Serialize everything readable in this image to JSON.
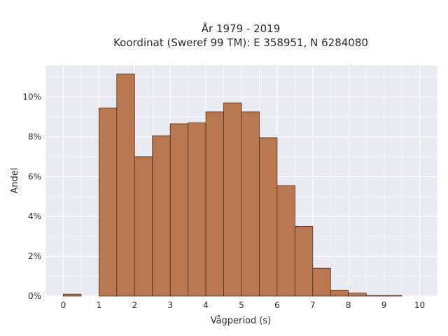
{
  "chart_data": {
    "type": "bar",
    "title_line1": "År 1979 - 2019",
    "title_line2": "Koordinat (Sweref 99 TM): E 358951, N 6284080",
    "xlabel": "Vågperiod (s)",
    "ylabel": "Andel",
    "bin_width": 0.5,
    "bins_start": [
      0,
      0.5,
      1,
      1.5,
      2,
      2.5,
      3,
      3.5,
      4,
      4.5,
      5,
      5.5,
      6,
      6.5,
      7,
      7.5,
      8,
      8.5,
      9,
      9.5
    ],
    "values": [
      0.1,
      0,
      9.45,
      11.15,
      7.0,
      8.05,
      8.65,
      8.7,
      9.25,
      9.7,
      9.25,
      7.95,
      5.55,
      3.5,
      1.4,
      0.3,
      0.15,
      0.03,
      0.03,
      0
    ],
    "xlim": [
      -0.5,
      10.5
    ],
    "ylim": [
      0,
      11.6
    ],
    "xticks": [
      0,
      1,
      2,
      3,
      4,
      5,
      6,
      7,
      8,
      9,
      10
    ],
    "xtick_labels": [
      "0",
      "1",
      "2",
      "3",
      "4",
      "5",
      "6",
      "7",
      "8",
      "9",
      "10"
    ],
    "yticks": [
      0,
      2,
      4,
      6,
      8,
      10
    ],
    "ytick_labels": [
      "0%",
      "2%",
      "4%",
      "6%",
      "8%",
      "10%"
    ],
    "grid": true,
    "colors": {
      "bar_fill": "#b87851",
      "bar_stroke": "#4a2e1f",
      "plot_bg": "#eaeaf2",
      "grid": "#ffffff",
      "text": "#2a2a2a"
    }
  }
}
